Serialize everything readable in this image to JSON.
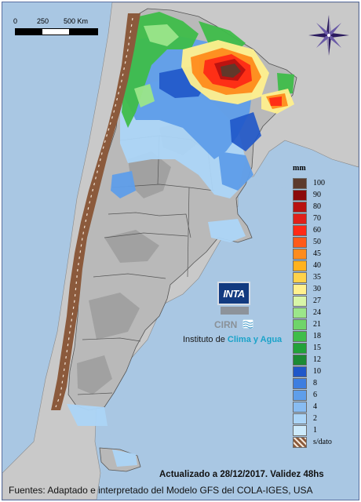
{
  "scale": {
    "ticks": [
      "0",
      "250",
      "500 Km"
    ]
  },
  "legend": {
    "unit": "mm",
    "items": [
      {
        "label": "100",
        "color": "#5c3a2c"
      },
      {
        "label": "90",
        "color": "#8b0a0a"
      },
      {
        "label": "80",
        "color": "#b81210"
      },
      {
        "label": "70",
        "color": "#e0201a"
      },
      {
        "label": "60",
        "color": "#ff2a16"
      },
      {
        "label": "50",
        "color": "#ff5a1a"
      },
      {
        "label": "45",
        "color": "#ff8c1c"
      },
      {
        "label": "40",
        "color": "#ffb21e"
      },
      {
        "label": "35",
        "color": "#ffd24a"
      },
      {
        "label": "30",
        "color": "#fff08e"
      },
      {
        "label": "27",
        "color": "#d8f5a8"
      },
      {
        "label": "24",
        "color": "#9be68a"
      },
      {
        "label": "21",
        "color": "#6fd46a"
      },
      {
        "label": "18",
        "color": "#3fbd4a"
      },
      {
        "label": "15",
        "color": "#22a23a"
      },
      {
        "label": "12",
        "color": "#1c8a34"
      },
      {
        "label": "10",
        "color": "#1f57c9"
      },
      {
        "label": "8",
        "color": "#3d7ee0"
      },
      {
        "label": "6",
        "color": "#5f9eea"
      },
      {
        "label": "4",
        "color": "#88bcf2"
      },
      {
        "label": "2",
        "color": "#acd5f7"
      },
      {
        "label": "1",
        "color": "#cdeafb"
      },
      {
        "label": "s/dato",
        "color": "#8b5a3c"
      }
    ]
  },
  "logo": {
    "brand": "INTA",
    "sub": "CIRN",
    "institute_prefix": "Instituto de ",
    "institute_accent": "Clima y Agua"
  },
  "footer": {
    "updated": "Actualizado a 28/12/2017. Validez 48hs",
    "sources": "Fuentes: Adaptado e interpretado del Modelo GFS del COLA-IGES, USA"
  },
  "colors": {
    "ocean": "#a9c7e3",
    "neighbor_land": "#c8c8c8",
    "terrain": "#b8b8b8",
    "nodata": "#8b5a3c"
  },
  "icons": [
    "compass-rose-icon",
    "inta-logo-icon",
    "cirn-wave-icon"
  ]
}
